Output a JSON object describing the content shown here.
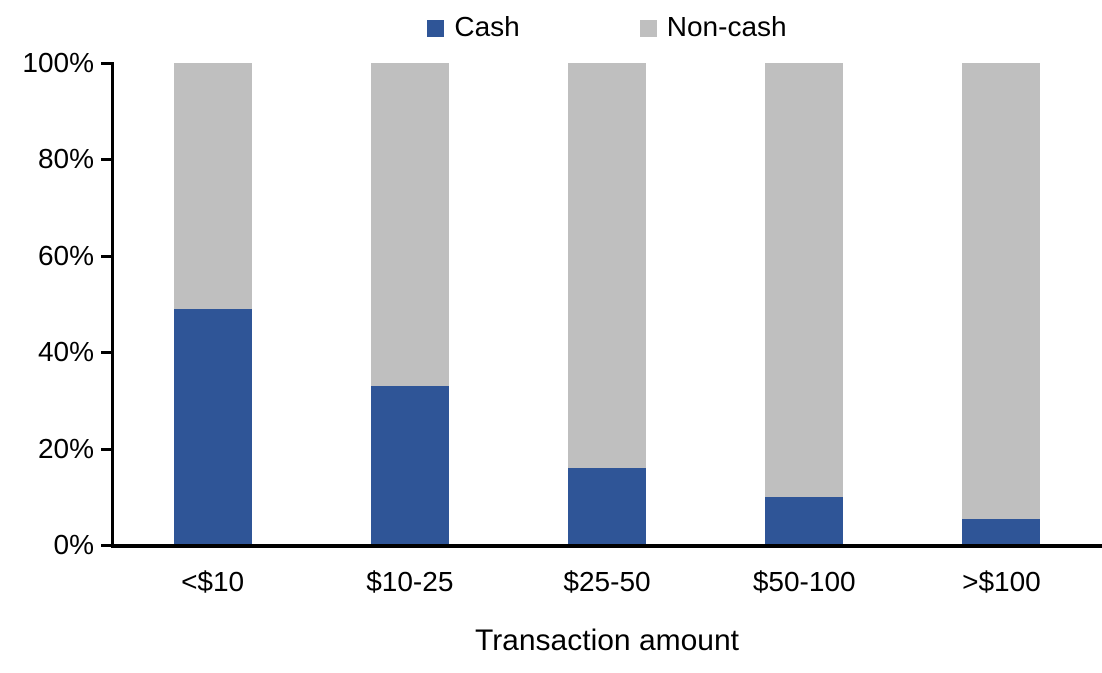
{
  "chart_data": {
    "type": "bar",
    "stacked": true,
    "stacked_mode": "percent",
    "title": "",
    "xlabel": "Transaction amount",
    "ylabel": "",
    "categories": [
      "<$10",
      "$10-25",
      "$25-50",
      "$50-100",
      ">$100"
    ],
    "series": [
      {
        "name": "Cash",
        "color": "#2F5597",
        "values": [
          49,
          33,
          16,
          10,
          5.5
        ]
      },
      {
        "name": "Non-cash",
        "color": "#BFBFBF",
        "values": [
          51,
          67,
          84,
          90,
          94.5
        ]
      }
    ],
    "ylim": [
      0,
      100
    ],
    "yticks": [
      {
        "value": 0,
        "label": "0%"
      },
      {
        "value": 20,
        "label": "20%"
      },
      {
        "value": 40,
        "label": "40%"
      },
      {
        "value": 60,
        "label": "60%"
      },
      {
        "value": 80,
        "label": "80%"
      },
      {
        "value": 100,
        "label": "100%"
      }
    ],
    "legend_position": "top",
    "grid": false,
    "colors": {
      "axis": "#000000",
      "background": "#FFFFFF"
    }
  }
}
